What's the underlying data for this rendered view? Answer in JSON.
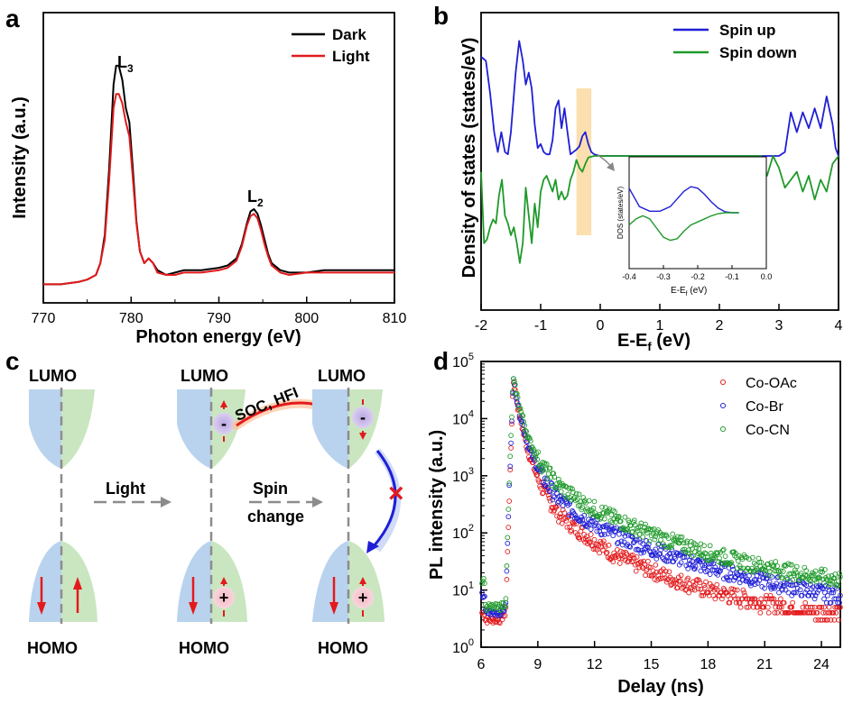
{
  "panels": {
    "a": "a",
    "b": "b",
    "c": "c",
    "d": "d"
  },
  "chart_data": [
    {
      "id": "a",
      "type": "line",
      "xlabel": "Photon energy (eV)",
      "ylabel": "Intensity (a.u.)",
      "xlim": [
        770,
        810
      ],
      "ylim": [
        0,
        1.12
      ],
      "xticks": [
        770,
        780,
        790,
        800,
        810
      ],
      "annotations": [
        {
          "base": "L",
          "sub": "3",
          "x": 778.5,
          "y": 0.93
        },
        {
          "base": "L",
          "sub": "2",
          "x": 794.2,
          "y": 0.36
        }
      ],
      "legend": {
        "position": "top-right"
      },
      "series": [
        {
          "name": "Dark",
          "color": "#000000",
          "x": [
            770,
            772,
            774,
            775,
            776,
            776.5,
            777,
            777.5,
            778,
            778.3,
            778.6,
            779,
            779.4,
            779.8,
            780.2,
            780.6,
            781,
            781.5,
            782,
            782.5,
            783,
            784,
            785,
            786,
            788,
            790,
            791,
            792,
            792.6,
            793.2,
            793.6,
            794,
            794.4,
            794.8,
            795.2,
            795.6,
            796,
            797,
            798,
            800,
            802,
            804,
            806,
            808,
            810
          ],
          "y": [
            0.01,
            0.01,
            0.02,
            0.03,
            0.05,
            0.1,
            0.22,
            0.5,
            0.86,
            0.94,
            0.94,
            0.88,
            0.76,
            0.7,
            0.5,
            0.28,
            0.15,
            0.1,
            0.12,
            0.1,
            0.07,
            0.05,
            0.06,
            0.07,
            0.07,
            0.08,
            0.09,
            0.12,
            0.18,
            0.27,
            0.32,
            0.33,
            0.31,
            0.26,
            0.2,
            0.14,
            0.1,
            0.07,
            0.06,
            0.06,
            0.07,
            0.07,
            0.07,
            0.07,
            0.07
          ]
        },
        {
          "name": "Light",
          "color": "#e31a1c",
          "x": [
            770,
            772,
            774,
            775,
            776,
            776.5,
            777,
            777.5,
            778,
            778.3,
            778.6,
            779,
            779.4,
            779.8,
            780.2,
            780.6,
            781,
            781.5,
            782,
            782.5,
            783,
            784,
            785,
            786,
            788,
            790,
            791,
            792,
            792.6,
            793.2,
            793.6,
            794,
            794.4,
            794.8,
            795.2,
            795.6,
            796,
            797,
            798,
            800,
            802,
            804,
            806,
            808,
            810
          ],
          "y": [
            0.01,
            0.01,
            0.02,
            0.03,
            0.05,
            0.1,
            0.2,
            0.45,
            0.76,
            0.82,
            0.82,
            0.78,
            0.7,
            0.64,
            0.46,
            0.27,
            0.15,
            0.1,
            0.12,
            0.1,
            0.06,
            0.05,
            0.05,
            0.06,
            0.06,
            0.07,
            0.08,
            0.11,
            0.17,
            0.26,
            0.3,
            0.31,
            0.29,
            0.24,
            0.18,
            0.13,
            0.09,
            0.06,
            0.05,
            0.06,
            0.06,
            0.06,
            0.06,
            0.06,
            0.06
          ]
        }
      ]
    },
    {
      "id": "b",
      "type": "line",
      "xlabel": "E-E",
      "xlabel_sub": "f",
      "xlabel_unit": "(eV)",
      "ylabel": "Density of states (states/eV)",
      "xlim": [
        -2,
        4
      ],
      "ylim": [
        -1.6,
        1.6
      ],
      "xticks": [
        -2,
        -1,
        0,
        1,
        2,
        3,
        4
      ],
      "xticklabels": [
        "-2",
        "-1",
        "0",
        "1",
        "2",
        "3",
        "4"
      ],
      "highlight_range": [
        -0.4,
        -0.15
      ],
      "legend": {
        "position": "top-right"
      },
      "series": [
        {
          "name": "Spin up",
          "color": "#1f1fd6",
          "x": [
            -2,
            -1.92,
            -1.85,
            -1.78,
            -1.72,
            -1.66,
            -1.6,
            -1.55,
            -1.5,
            -1.42,
            -1.36,
            -1.3,
            -1.25,
            -1.2,
            -1.15,
            -1.1,
            -1.05,
            -1.0,
            -0.95,
            -0.9,
            -0.85,
            -0.8,
            -0.75,
            -0.7,
            -0.65,
            -0.6,
            -0.55,
            -0.5,
            -0.45,
            -0.4,
            -0.35,
            -0.3,
            -0.25,
            -0.2,
            -0.15,
            -0.1,
            0,
            0.5,
            1,
            2,
            2.8,
            3.0,
            3.1,
            3.2,
            3.3,
            3.4,
            3.5,
            3.6,
            3.7,
            3.8,
            3.9,
            3.95,
            4
          ],
          "y": [
            1.25,
            1.2,
            0.8,
            0.3,
            0.05,
            0.3,
            0.05,
            0.02,
            0.3,
            1.05,
            1.45,
            1.2,
            0.9,
            1.05,
            0.85,
            0.4,
            0.1,
            0.15,
            0.05,
            0.02,
            0.02,
            0.2,
            0.6,
            0.7,
            0.35,
            0.6,
            0.3,
            0.02,
            0.05,
            0.08,
            0.12,
            0.25,
            0.3,
            0.15,
            0.05,
            0.02,
            0.0,
            0.0,
            0.0,
            0.0,
            0.0,
            0.0,
            0.05,
            0.55,
            0.3,
            0.55,
            0.35,
            0.6,
            0.35,
            0.75,
            0.4,
            0.1,
            0.0
          ]
        },
        {
          "name": "Spin down",
          "color": "#1f9a2a",
          "x": [
            -2,
            -1.95,
            -1.9,
            -1.85,
            -1.8,
            -1.75,
            -1.7,
            -1.65,
            -1.6,
            -1.55,
            -1.5,
            -1.45,
            -1.4,
            -1.35,
            -1.3,
            -1.25,
            -1.2,
            -1.15,
            -1.1,
            -1.05,
            -1.0,
            -0.95,
            -0.9,
            -0.85,
            -0.8,
            -0.75,
            -0.7,
            -0.65,
            -0.6,
            -0.55,
            -0.5,
            -0.45,
            -0.4,
            -0.35,
            -0.3,
            -0.25,
            -0.2,
            -0.1,
            0,
            0.5,
            1,
            2,
            2.7,
            2.8,
            2.9,
            3.0,
            3.1,
            3.2,
            3.3,
            3.4,
            3.5,
            3.6,
            3.7,
            3.8,
            3.9,
            4
          ],
          "y": [
            -0.2,
            -1.1,
            -1.05,
            -0.9,
            -0.8,
            -0.85,
            -0.5,
            -0.3,
            -0.75,
            -0.85,
            -1.0,
            -0.9,
            -1.1,
            -1.35,
            -1.1,
            -0.4,
            -0.75,
            -1.1,
            -0.6,
            -0.9,
            -0.45,
            -0.3,
            -0.25,
            -0.35,
            -0.45,
            -0.3,
            -0.55,
            -0.45,
            -0.55,
            -0.5,
            -0.3,
            -0.2,
            -0.05,
            -0.15,
            -0.2,
            -0.1,
            -0.02,
            0.0,
            0.0,
            0.0,
            0.0,
            0.0,
            0.0,
            -0.25,
            0.0,
            -0.15,
            -0.4,
            -0.3,
            -0.2,
            -0.45,
            -0.25,
            -0.55,
            -0.3,
            -0.45,
            -0.1,
            0.0
          ]
        }
      ]
    },
    {
      "id": "b-inset",
      "type": "line",
      "xlabel": "E-E",
      "xlabel_sub": "f",
      "xlabel_unit": "(eV)",
      "ylabel": "DOS (states/eV)",
      "xlim": [
        -0.4,
        0.0
      ],
      "ylim": [
        -0.12,
        0.12
      ],
      "xticks": [
        -0.4,
        -0.3,
        -0.2,
        -0.1,
        0.0
      ],
      "xticklabels": [
        "-0.4",
        "-0.3",
        "-0.2",
        "-0.1",
        "0.0"
      ],
      "series": [
        {
          "name": "Spin up",
          "color": "#1f1fd6",
          "x": [
            -0.4,
            -0.37,
            -0.34,
            -0.31,
            -0.28,
            -0.26,
            -0.24,
            -0.22,
            -0.2,
            -0.18,
            -0.16,
            -0.14,
            -0.12,
            -0.1,
            -0.08
          ],
          "y": [
            0.08,
            0.02,
            0.005,
            0.005,
            0.02,
            0.045,
            0.07,
            0.085,
            0.08,
            0.06,
            0.035,
            0.015,
            0.003,
            0.0,
            0.0
          ]
        },
        {
          "name": "Spin down",
          "color": "#1f9a2a",
          "x": [
            -0.4,
            -0.38,
            -0.36,
            -0.34,
            -0.32,
            -0.3,
            -0.28,
            -0.26,
            -0.24,
            -0.22,
            -0.2,
            -0.18,
            -0.16,
            -0.14,
            -0.12,
            -0.1,
            -0.08
          ],
          "y": [
            -0.04,
            -0.02,
            -0.01,
            -0.02,
            -0.05,
            -0.08,
            -0.09,
            -0.085,
            -0.06,
            -0.04,
            -0.03,
            -0.02,
            -0.01,
            -0.003,
            0.0,
            0.0,
            0.0
          ]
        }
      ]
    },
    {
      "id": "d",
      "type": "scatter",
      "xlabel": "Delay (ns)",
      "ylabel": "PL intensity (a.u.)",
      "yscale": "log",
      "xlim": [
        6,
        25
      ],
      "ylim": [
        1,
        100000
      ],
      "xticks": [
        6,
        9,
        12,
        15,
        18,
        21,
        24
      ],
      "yticks": [
        1,
        10,
        100,
        1000,
        10000,
        100000
      ],
      "yticklabels": [
        [
          "10",
          "0"
        ],
        [
          "10",
          "1"
        ],
        [
          "10",
          "2"
        ],
        [
          "10",
          "3"
        ],
        [
          "10",
          "4"
        ],
        [
          "10",
          "5"
        ]
      ],
      "legend": {
        "position": "top-right"
      },
      "series": [
        {
          "name": "Co-OAc",
          "color": "#e31a1c",
          "x": [
            6.2,
            6.6,
            7.0,
            7.3,
            7.5,
            7.7,
            8.0,
            8.5,
            9.0,
            9.5,
            10,
            11,
            12,
            13,
            14,
            15,
            16,
            18,
            20,
            22,
            24,
            25
          ],
          "y": [
            3,
            3,
            3,
            4,
            500,
            48000,
            12000,
            2500,
            900,
            420,
            230,
            120,
            70,
            42,
            30,
            22,
            16,
            10,
            7,
            5,
            4,
            4
          ]
        },
        {
          "name": "Co-Br",
          "color": "#1f1fd6",
          "x": [
            6.2,
            6.6,
            7.0,
            7.3,
            7.5,
            7.7,
            8.0,
            8.5,
            9.0,
            9.5,
            10,
            11,
            12,
            13,
            14,
            15,
            16,
            18,
            20,
            22,
            24,
            25
          ],
          "y": [
            4,
            4,
            4,
            5,
            800,
            48000,
            14000,
            3200,
            1300,
            700,
            420,
            220,
            140,
            95,
            70,
            52,
            40,
            25,
            17,
            12,
            9,
            8
          ]
        },
        {
          "name": "Co-CN",
          "color": "#1f9a2a",
          "x": [
            6.2,
            6.6,
            7.0,
            7.3,
            7.5,
            7.7,
            8.0,
            8.5,
            9.0,
            9.5,
            10,
            11,
            12,
            13,
            14,
            15,
            16,
            18,
            20,
            22,
            24,
            25
          ],
          "y": [
            5,
            5,
            5,
            6,
            1000,
            49000,
            18000,
            4500,
            2000,
            1150,
            720,
            400,
            260,
            180,
            130,
            95,
            72,
            45,
            30,
            22,
            17,
            15
          ]
        }
      ]
    }
  ],
  "diagram_c": {
    "lumo_label": "LUMO",
    "homo_label": "HOMO",
    "light_label": "Light",
    "spin_label": "Spin",
    "change_label": "change",
    "soc_label": "SOC, HFI",
    "minus": "-",
    "plus": "+",
    "block_mark": "×",
    "colors": {
      "blue": "#b9d3ee",
      "green": "#c9e6c0",
      "red": "#e31a1c",
      "arrow_blue": "#1f1fd6",
      "gray": "#8c8c8c"
    }
  }
}
